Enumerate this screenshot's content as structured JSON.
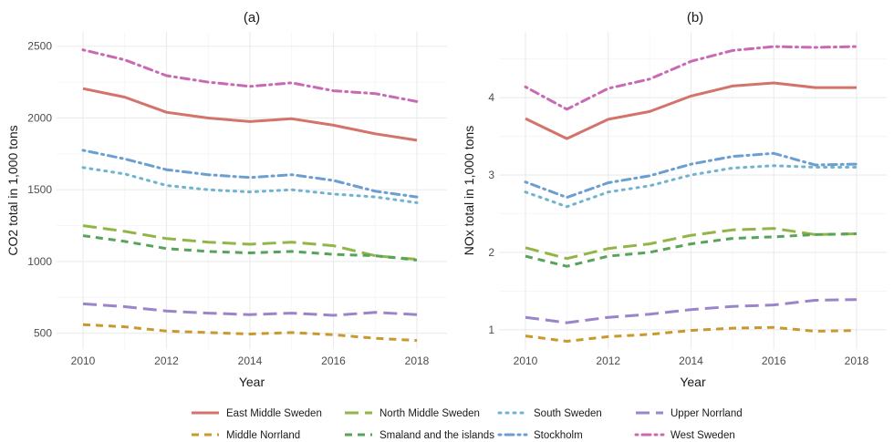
{
  "chart_data": [
    {
      "type": "line",
      "title": "(a)",
      "xlabel": "Year",
      "ylabel": "CO2 total in 1,000 tons",
      "xlim": [
        2010,
        2018
      ],
      "ylim": [
        390,
        2600
      ],
      "x_ticks": [
        2010,
        2012,
        2014,
        2016,
        2018
      ],
      "y_ticks": [
        500,
        1000,
        1500,
        2000,
        2500
      ],
      "grid": true,
      "x": [
        2010,
        2011,
        2012,
        2013,
        2014,
        2015,
        2016,
        2017,
        2018
      ],
      "series": [
        {
          "name": "East Middle Sweden",
          "values": [
            2205,
            2145,
            2040,
            2000,
            1975,
            1995,
            1950,
            1890,
            1845
          ]
        },
        {
          "name": "North Middle Sweden",
          "values": [
            1250,
            1210,
            1160,
            1135,
            1120,
            1135,
            1110,
            1040,
            1015
          ]
        },
        {
          "name": "South Sweden",
          "values": [
            1655,
            1610,
            1530,
            1500,
            1485,
            1500,
            1470,
            1450,
            1410
          ]
        },
        {
          "name": "Upper Norrland",
          "values": [
            705,
            685,
            655,
            640,
            630,
            640,
            625,
            645,
            630
          ]
        },
        {
          "name": "Middle Norrland",
          "values": [
            560,
            545,
            515,
            505,
            495,
            505,
            490,
            465,
            450
          ]
        },
        {
          "name": "Smaland and the islands",
          "values": [
            1180,
            1140,
            1090,
            1070,
            1060,
            1070,
            1050,
            1040,
            1010
          ]
        },
        {
          "name": "Stockholm",
          "values": [
            1775,
            1715,
            1640,
            1605,
            1585,
            1605,
            1565,
            1490,
            1450
          ]
        },
        {
          "name": "West Sweden",
          "values": [
            2475,
            2405,
            2295,
            2250,
            2220,
            2245,
            2190,
            2170,
            2115
          ]
        }
      ]
    },
    {
      "type": "line",
      "title": "(b)",
      "xlabel": "Year",
      "ylabel": "NOx total in 1,000 tons",
      "xlim": [
        2010,
        2018
      ],
      "ylim": [
        0.75,
        4.85
      ],
      "x_ticks": [
        2010,
        2012,
        2014,
        2016,
        2018
      ],
      "y_ticks": [
        1,
        2,
        3,
        4
      ],
      "grid": true,
      "x": [
        2010,
        2011,
        2012,
        2013,
        2014,
        2015,
        2016,
        2017,
        2018
      ],
      "series": [
        {
          "name": "East Middle Sweden",
          "values": [
            3.73,
            3.47,
            3.72,
            3.82,
            4.02,
            4.15,
            4.19,
            4.13,
            4.13
          ]
        },
        {
          "name": "North Middle Sweden",
          "values": [
            2.06,
            1.92,
            2.05,
            2.11,
            2.22,
            2.29,
            2.31,
            2.23,
            2.24
          ]
        },
        {
          "name": "South Sweden",
          "values": [
            2.78,
            2.59,
            2.78,
            2.86,
            3.0,
            3.09,
            3.12,
            3.1,
            3.1
          ]
        },
        {
          "name": "Upper Norrland",
          "values": [
            1.16,
            1.09,
            1.16,
            1.2,
            1.26,
            1.3,
            1.32,
            1.38,
            1.39
          ]
        },
        {
          "name": "Middle Norrland",
          "values": [
            0.92,
            0.85,
            0.91,
            0.94,
            0.99,
            1.02,
            1.03,
            0.98,
            0.99
          ]
        },
        {
          "name": "Smaland and the islands",
          "values": [
            1.95,
            1.82,
            1.95,
            2.0,
            2.11,
            2.18,
            2.2,
            2.23,
            2.24
          ]
        },
        {
          "name": "Stockholm",
          "values": [
            2.91,
            2.71,
            2.9,
            2.99,
            3.14,
            3.24,
            3.28,
            3.13,
            3.14
          ]
        },
        {
          "name": "West Sweden",
          "values": [
            4.14,
            3.85,
            4.12,
            4.24,
            4.47,
            4.61,
            4.66,
            4.65,
            4.66
          ]
        }
      ]
    }
  ],
  "legend": {
    "placement": "bottom",
    "items": [
      {
        "name": "East Middle Sweden",
        "color": "#d4736a",
        "dash": "solid"
      },
      {
        "name": "North Middle Sweden",
        "color": "#92b548",
        "dash": "longdash"
      },
      {
        "name": "South Sweden",
        "color": "#6fb3cf",
        "dash": "dotted"
      },
      {
        "name": "Upper Norrland",
        "color": "#9b84c9",
        "dash": "longdash"
      },
      {
        "name": "Middle Norrland",
        "color": "#c9992f",
        "dash": "dashed"
      },
      {
        "name": "Smaland and the islands",
        "color": "#56a35a",
        "dash": "dashed"
      },
      {
        "name": "Stockholm",
        "color": "#6b9fd2",
        "dash": "dotdash"
      },
      {
        "name": "West Sweden",
        "color": "#c969b4",
        "dash": "dotdash"
      }
    ]
  }
}
